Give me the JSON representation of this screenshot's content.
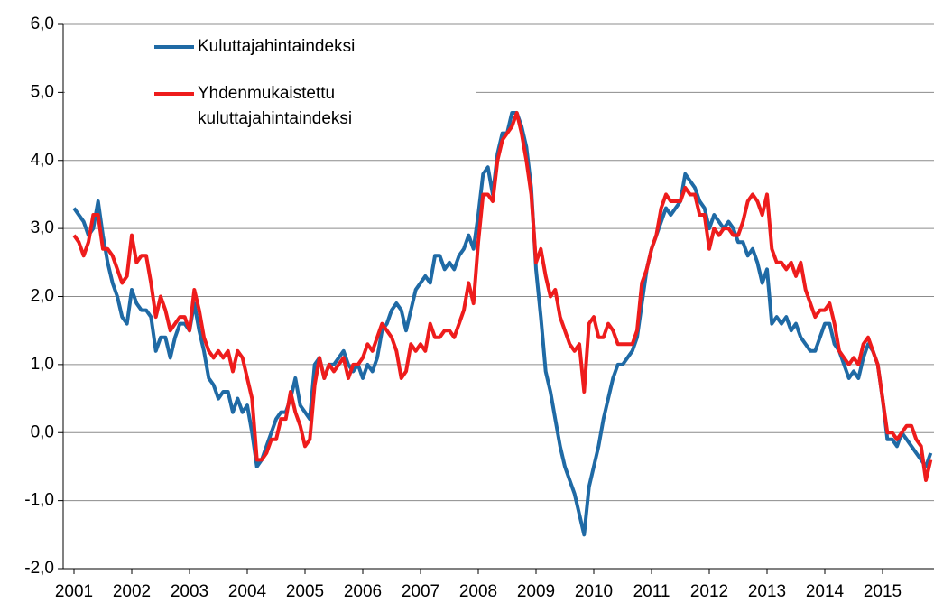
{
  "chart_data": {
    "type": "line",
    "x": [
      2001,
      2001.083,
      2001.167,
      2001.25,
      2001.333,
      2001.417,
      2001.5,
      2001.583,
      2001.667,
      2001.75,
      2001.833,
      2001.917,
      2002,
      2002.083,
      2002.167,
      2002.25,
      2002.333,
      2002.417,
      2002.5,
      2002.583,
      2002.667,
      2002.75,
      2002.833,
      2002.917,
      2003,
      2003.083,
      2003.167,
      2003.25,
      2003.333,
      2003.417,
      2003.5,
      2003.583,
      2003.667,
      2003.75,
      2003.833,
      2003.917,
      2004,
      2004.083,
      2004.167,
      2004.25,
      2004.333,
      2004.417,
      2004.5,
      2004.583,
      2004.667,
      2004.75,
      2004.833,
      2004.917,
      2005,
      2005.083,
      2005.167,
      2005.25,
      2005.333,
      2005.417,
      2005.5,
      2005.583,
      2005.667,
      2005.75,
      2005.833,
      2005.917,
      2006,
      2006.083,
      2006.167,
      2006.25,
      2006.333,
      2006.417,
      2006.5,
      2006.583,
      2006.667,
      2006.75,
      2006.833,
      2006.917,
      2007,
      2007.083,
      2007.167,
      2007.25,
      2007.333,
      2007.417,
      2007.5,
      2007.583,
      2007.667,
      2007.75,
      2007.833,
      2007.917,
      2008,
      2008.083,
      2008.167,
      2008.25,
      2008.333,
      2008.417,
      2008.5,
      2008.583,
      2008.667,
      2008.75,
      2008.833,
      2008.917,
      2009,
      2009.083,
      2009.167,
      2009.25,
      2009.333,
      2009.417,
      2009.5,
      2009.583,
      2009.667,
      2009.75,
      2009.833,
      2009.917,
      2010,
      2010.083,
      2010.167,
      2010.25,
      2010.333,
      2010.417,
      2010.5,
      2010.583,
      2010.667,
      2010.75,
      2010.833,
      2010.917,
      2011,
      2011.083,
      2011.167,
      2011.25,
      2011.333,
      2011.417,
      2011.5,
      2011.583,
      2011.667,
      2011.75,
      2011.833,
      2011.917,
      2012,
      2012.083,
      2012.167,
      2012.25,
      2012.333,
      2012.417,
      2012.5,
      2012.583,
      2012.667,
      2012.75,
      2012.833,
      2012.917,
      2013,
      2013.083,
      2013.167,
      2013.25,
      2013.333,
      2013.417,
      2013.5,
      2013.583,
      2013.667,
      2013.75,
      2013.833,
      2013.917,
      2014,
      2014.083,
      2014.167,
      2014.25,
      2014.333,
      2014.417,
      2014.5,
      2014.583,
      2014.667,
      2014.75,
      2014.833,
      2014.917,
      2015,
      2015.083,
      2015.167,
      2015.25,
      2015.333,
      2015.417,
      2015.5,
      2015.583,
      2015.667,
      2015.75,
      2015.833
    ],
    "series": [
      {
        "name": "Kuluttajahintaindeksi",
        "color": "#1f6aa5",
        "values": [
          3.3,
          3.2,
          3.1,
          2.9,
          3.0,
          3.4,
          2.9,
          2.5,
          2.2,
          2.0,
          1.7,
          1.6,
          2.1,
          1.9,
          1.8,
          1.8,
          1.7,
          1.2,
          1.4,
          1.4,
          1.1,
          1.4,
          1.6,
          1.6,
          1.5,
          1.9,
          1.5,
          1.2,
          0.8,
          0.7,
          0.5,
          0.6,
          0.6,
          0.3,
          0.5,
          0.3,
          0.4,
          0.0,
          -0.5,
          -0.4,
          -0.2,
          0.0,
          0.2,
          0.3,
          0.3,
          0.5,
          0.8,
          0.4,
          0.3,
          0.2,
          1.0,
          1.1,
          0.8,
          1.0,
          1.0,
          1.1,
          1.2,
          1.0,
          0.9,
          1.0,
          0.8,
          1.0,
          0.9,
          1.1,
          1.5,
          1.6,
          1.8,
          1.9,
          1.8,
          1.5,
          1.8,
          2.1,
          2.2,
          2.3,
          2.2,
          2.6,
          2.6,
          2.4,
          2.5,
          2.4,
          2.6,
          2.7,
          2.9,
          2.7,
          3.2,
          3.8,
          3.9,
          3.5,
          4.1,
          4.4,
          4.4,
          4.7,
          4.7,
          4.5,
          4.2,
          3.6,
          2.4,
          1.7,
          0.9,
          0.6,
          0.2,
          -0.2,
          -0.5,
          -0.7,
          -0.9,
          -1.2,
          -1.5,
          -0.8,
          -0.5,
          -0.2,
          0.2,
          0.5,
          0.8,
          1.0,
          1.0,
          1.1,
          1.2,
          1.4,
          1.9,
          2.4,
          2.7,
          2.9,
          3.1,
          3.3,
          3.2,
          3.3,
          3.4,
          3.8,
          3.7,
          3.6,
          3.4,
          3.3,
          3.0,
          3.2,
          3.1,
          3.0,
          3.1,
          3.0,
          2.8,
          2.8,
          2.6,
          2.7,
          2.5,
          2.2,
          2.4,
          1.6,
          1.7,
          1.6,
          1.7,
          1.5,
          1.6,
          1.4,
          1.3,
          1.2,
          1.2,
          1.4,
          1.6,
          1.6,
          1.3,
          1.2,
          1.0,
          0.8,
          0.9,
          0.8,
          1.1,
          1.3,
          1.2,
          1.0,
          0.5,
          -0.1,
          -0.1,
          -0.2,
          0.0,
          -0.1,
          -0.2,
          -0.3,
          -0.4,
          -0.5,
          -0.3
        ]
      },
      {
        "name": "Yhdenmukaistettu kuluttajahintaindeksi",
        "color": "#ee1c1c",
        "values": [
          2.9,
          2.8,
          2.6,
          2.8,
          3.2,
          3.2,
          2.7,
          2.7,
          2.6,
          2.4,
          2.2,
          2.3,
          2.9,
          2.5,
          2.6,
          2.6,
          2.2,
          1.7,
          2.0,
          1.8,
          1.5,
          1.6,
          1.7,
          1.7,
          1.5,
          2.1,
          1.8,
          1.4,
          1.2,
          1.1,
          1.2,
          1.1,
          1.2,
          0.9,
          1.2,
          1.1,
          0.8,
          0.5,
          -0.4,
          -0.4,
          -0.3,
          -0.1,
          -0.1,
          0.2,
          0.2,
          0.6,
          0.3,
          0.1,
          -0.2,
          -0.1,
          0.7,
          1.1,
          0.8,
          1.0,
          0.9,
          1.0,
          1.1,
          0.8,
          1.0,
          1.0,
          1.1,
          1.3,
          1.2,
          1.4,
          1.6,
          1.5,
          1.4,
          1.2,
          0.8,
          0.9,
          1.3,
          1.2,
          1.3,
          1.2,
          1.6,
          1.4,
          1.4,
          1.5,
          1.5,
          1.4,
          1.6,
          1.8,
          2.2,
          1.9,
          2.8,
          3.5,
          3.5,
          3.4,
          4.0,
          4.3,
          4.4,
          4.5,
          4.7,
          4.4,
          4.0,
          3.5,
          2.5,
          2.7,
          2.3,
          2.0,
          2.1,
          1.7,
          1.5,
          1.3,
          1.2,
          1.3,
          0.6,
          1.6,
          1.7,
          1.4,
          1.4,
          1.6,
          1.5,
          1.3,
          1.3,
          1.3,
          1.3,
          1.5,
          2.2,
          2.4,
          2.7,
          2.9,
          3.3,
          3.5,
          3.4,
          3.4,
          3.4,
          3.6,
          3.5,
          3.5,
          3.2,
          3.2,
          2.7,
          3.0,
          2.9,
          3.0,
          3.0,
          2.9,
          2.9,
          3.1,
          3.4,
          3.5,
          3.4,
          3.2,
          3.5,
          2.7,
          2.5,
          2.5,
          2.4,
          2.5,
          2.3,
          2.5,
          2.1,
          1.9,
          1.7,
          1.8,
          1.8,
          1.9,
          1.6,
          1.2,
          1.1,
          1.0,
          1.1,
          1.0,
          1.3,
          1.4,
          1.2,
          1.0,
          0.5,
          0.0,
          0.0,
          -0.1,
          0.0,
          0.1,
          0.1,
          -0.1,
          -0.2,
          -0.7,
          -0.4
        ]
      }
    ],
    "xlim": [
      2001,
      2015.89
    ],
    "xticks": [
      2001,
      2002,
      2003,
      2004,
      2005,
      2006,
      2007,
      2008,
      2009,
      2010,
      2011,
      2012,
      2013,
      2014,
      2015
    ],
    "ylim": [
      -2,
      6
    ],
    "yticks": [
      {
        "value": -2,
        "label": "-2,0"
      },
      {
        "value": -1,
        "label": "-1,0"
      },
      {
        "value": 0,
        "label": "0,0"
      },
      {
        "value": 1,
        "label": "1,0"
      },
      {
        "value": 2,
        "label": "2,0"
      },
      {
        "value": 3,
        "label": "3,0"
      },
      {
        "value": 4,
        "label": "4,0"
      },
      {
        "value": 5,
        "label": "5,0"
      },
      {
        "value": 6,
        "label": "6,0"
      }
    ],
    "grid": true,
    "legend": "top-left"
  }
}
